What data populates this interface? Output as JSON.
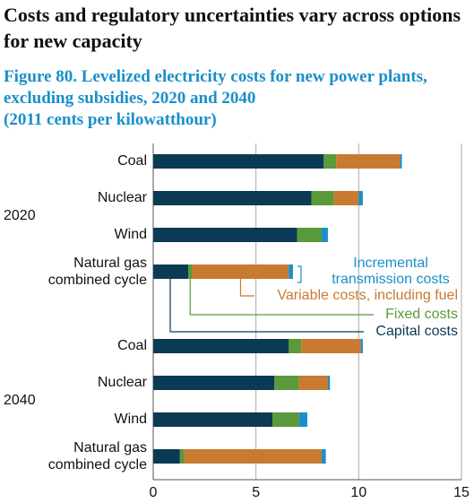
{
  "headline": "Costs and regulatory uncertainties vary across options for new capacity",
  "chart_data": {
    "type": "bar",
    "orientation": "horizontal",
    "stacked": true,
    "title": "Figure 80. Levelized electricity costs for new power plants, excluding subsidies, 2020 and 2040",
    "subtitle": "(2011 cents per kilowatthour)",
    "groups": [
      {
        "name": "2020",
        "categories": [
          "Coal",
          "Nuclear",
          "Wind",
          "Natural gas combined cycle"
        ]
      },
      {
        "name": "2040",
        "categories": [
          "Coal",
          "Nuclear",
          "Wind",
          "Natural gas combined cycle"
        ]
      }
    ],
    "series": [
      {
        "name": "Capital costs",
        "color": "#0b3a55",
        "values": [
          8.3,
          7.7,
          7.0,
          1.7,
          6.6,
          5.9,
          5.8,
          1.3
        ]
      },
      {
        "name": "Fixed costs",
        "color": "#5a9a3a",
        "values": [
          0.6,
          1.1,
          1.2,
          0.2,
          0.6,
          1.2,
          1.3,
          0.2
        ]
      },
      {
        "name": "Variable costs, including fuel",
        "color": "#c87a30",
        "values": [
          3.1,
          1.2,
          0,
          4.7,
          2.9,
          1.4,
          0,
          6.7
        ]
      },
      {
        "name": "Incremental transmission costs",
        "color": "#1a8fc9",
        "values": [
          0.1,
          0.2,
          0.3,
          0.2,
          0.1,
          0.1,
          0.4,
          0.2
        ]
      }
    ],
    "xlim": [
      0,
      15
    ],
    "xticks": [
      0,
      5,
      10,
      15
    ],
    "grid": true
  }
}
